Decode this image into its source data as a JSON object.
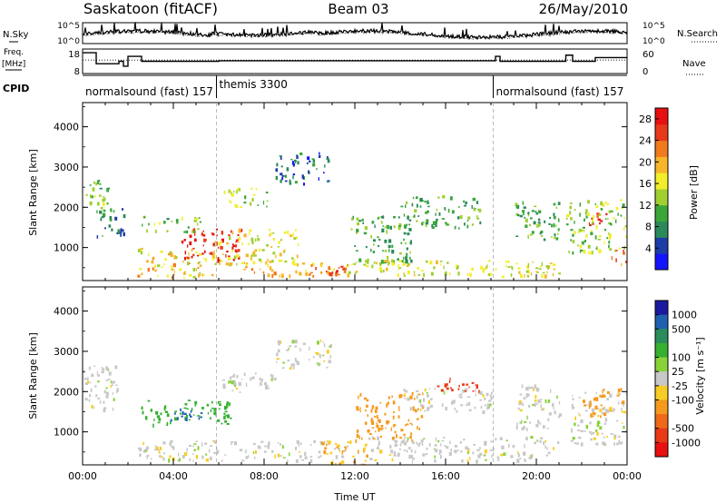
{
  "header": {
    "station": "Saskatoon (fitACF)",
    "beam": "Beam 03",
    "date": "26/May/2010"
  },
  "summary_panels": {
    "nsky_label": "N.Sky",
    "nsearch_label": "N.Search",
    "freq_label_line1": "Freq.",
    "freq_label_line2": "[MHz]",
    "nave_label": "Nave",
    "cpid_label": "CPID",
    "noise_ticks": [
      "10^5",
      "10^0"
    ],
    "freq_ticks": [
      "18",
      "8"
    ],
    "nave_ticks": [
      "60",
      "0"
    ],
    "cpid_segments": [
      {
        "label": "normalsound (fast) 157",
        "start_hour": 0,
        "end_hour": 5.9
      },
      {
        "label": "themis 3300",
        "start_hour": 5.9,
        "end_hour": 18.1
      },
      {
        "label": "normalsound (fast) 157",
        "start_hour": 18.1,
        "end_hour": 24
      }
    ]
  },
  "colors": {
    "power_scale": [
      "#1414ff",
      "#1e3ca8",
      "#2a8a5a",
      "#3aa63a",
      "#9fd030",
      "#f2ee2a",
      "#f7b52a",
      "#f07a1e",
      "#e83a1a",
      "#e81010"
    ],
    "velocity_scale": [
      "#1a1aa0",
      "#2060b0",
      "#2a8c5a",
      "#36b030",
      "#8ad23a",
      "#c8c8c8",
      "#f8cc24",
      "#f59a1e",
      "#ef6a18",
      "#e83a14",
      "#e81010"
    ]
  },
  "chart_data": [
    {
      "type": "heatmap",
      "title": "Power",
      "xlabel": "Time UT",
      "ylabel": "Slant Range [km]",
      "xlim": [
        0,
        24
      ],
      "ylim": [
        180,
        4600
      ],
      "xticks": [
        "00:00",
        "04:00",
        "08:00",
        "12:00",
        "16:00",
        "20:00",
        "00:00"
      ],
      "yticks": [
        "1000",
        "2000",
        "3000",
        "4000"
      ],
      "colorbar_label": "Power [dB]",
      "colorbar_ticks": [
        "4",
        "8",
        "12",
        "16",
        "20",
        "24",
        "28"
      ],
      "colorbar_range": [
        0,
        30
      ],
      "regions": [
        {
          "t0": 0.0,
          "t1": 1.3,
          "r0": 2000,
          "r1": 2700,
          "value": 12
        },
        {
          "t0": 0.5,
          "t1": 1.8,
          "r0": 1200,
          "r1": 2000,
          "value": 8
        },
        {
          "t0": 2.4,
          "t1": 5.8,
          "r0": 250,
          "r1": 1000,
          "value": 18
        },
        {
          "t0": 2.6,
          "t1": 5.2,
          "r0": 1400,
          "r1": 1800,
          "value": 12
        },
        {
          "t0": 4.3,
          "t1": 7.0,
          "r0": 700,
          "r1": 1500,
          "value": 28
        },
        {
          "t0": 5.8,
          "t1": 9.5,
          "r0": 600,
          "r1": 1500,
          "value": 16
        },
        {
          "t0": 6.2,
          "t1": 8.2,
          "r0": 2000,
          "r1": 2500,
          "value": 14
        },
        {
          "t0": 7.0,
          "t1": 11.8,
          "r0": 300,
          "r1": 650,
          "value": 20
        },
        {
          "t0": 9.5,
          "t1": 11.8,
          "r0": 350,
          "r1": 550,
          "value": 27
        },
        {
          "t0": 8.5,
          "t1": 10.8,
          "r0": 2600,
          "r1": 3400,
          "value": 6
        },
        {
          "t0": 11.8,
          "t1": 14.5,
          "r0": 600,
          "r1": 1800,
          "value": 10
        },
        {
          "t0": 11.5,
          "t1": 21.0,
          "r0": 300,
          "r1": 700,
          "value": 16
        },
        {
          "t0": 14.0,
          "t1": 17.5,
          "r0": 1500,
          "r1": 2300,
          "value": 10
        },
        {
          "t0": 19.0,
          "t1": 21.0,
          "r0": 1200,
          "r1": 2200,
          "value": 10
        },
        {
          "t0": 21.3,
          "t1": 24.0,
          "r0": 900,
          "r1": 2200,
          "value": 14
        },
        {
          "t0": 22.3,
          "t1": 23.2,
          "r0": 1500,
          "r1": 1950,
          "value": 26
        },
        {
          "t0": 23.3,
          "t1": 24.0,
          "r0": 600,
          "r1": 1000,
          "value": 22
        }
      ]
    },
    {
      "type": "heatmap",
      "title": "Velocity",
      "xlabel": "Time UT",
      "ylabel": "Slant Range [km]",
      "xlim": [
        0,
        24
      ],
      "ylim": [
        180,
        4600
      ],
      "xticks": [
        "00:00",
        "04:00",
        "08:00",
        "12:00",
        "16:00",
        "20:00",
        "00:00"
      ],
      "yticks": [
        "1000",
        "2000",
        "3000",
        "4000"
      ],
      "colorbar_label": "Velocity [m s⁻¹]",
      "colorbar_ticks": [
        "1000",
        "500",
        "100",
        "25",
        "-25",
        "-100",
        "-500",
        "-1000"
      ],
      "regions": [
        {
          "t0": 0.0,
          "t1": 1.5,
          "r0": 1500,
          "r1": 2700,
          "value": 0
        },
        {
          "t0": 2.4,
          "t1": 6.5,
          "r0": 1200,
          "r1": 1800,
          "value": 150
        },
        {
          "t0": 3.5,
          "t1": 5.2,
          "r0": 1300,
          "r1": 1600,
          "value": 600
        },
        {
          "t0": 2.4,
          "t1": 11.8,
          "r0": 300,
          "r1": 800,
          "value": 0
        },
        {
          "t0": 6.0,
          "t1": 8.5,
          "r0": 2000,
          "r1": 2500,
          "value": 0
        },
        {
          "t0": 8.5,
          "t1": 11.0,
          "r0": 2600,
          "r1": 3300,
          "value": 0
        },
        {
          "t0": 10.5,
          "t1": 12.5,
          "r0": 200,
          "r1": 800,
          "value": -100
        },
        {
          "t0": 12.0,
          "t1": 15.0,
          "r0": 800,
          "r1": 2000,
          "value": -150
        },
        {
          "t0": 15.5,
          "t1": 17.5,
          "r0": 2000,
          "r1": 2400,
          "value": -600
        },
        {
          "t0": 12.5,
          "t1": 21.0,
          "r0": 300,
          "r1": 900,
          "value": 0
        },
        {
          "t0": 14.0,
          "t1": 18.0,
          "r0": 1500,
          "r1": 2100,
          "value": 0
        },
        {
          "t0": 19.0,
          "t1": 21.0,
          "r0": 1100,
          "r1": 2200,
          "value": 0
        },
        {
          "t0": 21.5,
          "t1": 24.0,
          "r0": 700,
          "r1": 2000,
          "value": 0
        },
        {
          "t0": 22.0,
          "t1": 24.0,
          "r0": 1400,
          "r1": 2100,
          "value": -120
        }
      ]
    }
  ]
}
